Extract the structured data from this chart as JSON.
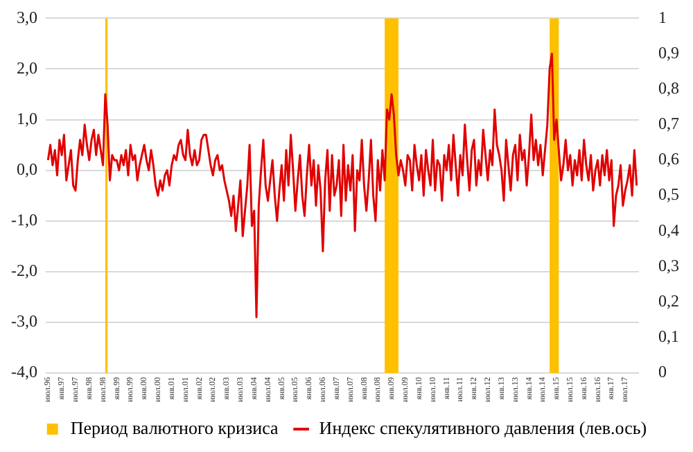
{
  "chart_data": {
    "type": "line",
    "x": [
      "1996-07",
      "1996-08",
      "1996-09",
      "1996-10",
      "1996-11",
      "1996-12",
      "1997-01",
      "1997-02",
      "1997-03",
      "1997-04",
      "1997-05",
      "1997-06",
      "1997-07",
      "1997-08",
      "1997-09",
      "1997-10",
      "1997-11",
      "1997-12",
      "1998-01",
      "1998-02",
      "1998-03",
      "1998-04",
      "1998-05",
      "1998-06",
      "1998-07",
      "1998-08",
      "1998-09",
      "1998-10",
      "1998-11",
      "1998-12",
      "1999-01",
      "1999-02",
      "1999-03",
      "1999-04",
      "1999-05",
      "1999-06",
      "1999-07",
      "1999-08",
      "1999-09",
      "1999-10",
      "1999-11",
      "1999-12",
      "2000-01",
      "2000-02",
      "2000-03",
      "2000-04",
      "2000-05",
      "2000-06",
      "2000-07",
      "2000-08",
      "2000-09",
      "2000-10",
      "2000-11",
      "2000-12",
      "2001-01",
      "2001-02",
      "2001-03",
      "2001-04",
      "2001-05",
      "2001-06",
      "2001-07",
      "2001-08",
      "2001-09",
      "2001-10",
      "2001-11",
      "2001-12",
      "2002-01",
      "2002-02",
      "2002-03",
      "2002-04",
      "2002-05",
      "2002-06",
      "2002-07",
      "2002-08",
      "2002-09",
      "2002-10",
      "2002-11",
      "2002-12",
      "2003-01",
      "2003-02",
      "2003-03",
      "2003-04",
      "2003-05",
      "2003-06",
      "2003-07",
      "2003-08",
      "2003-09",
      "2003-10",
      "2003-11",
      "2003-12",
      "2004-01",
      "2004-02",
      "2004-03",
      "2004-04",
      "2004-05",
      "2004-06",
      "2004-07",
      "2004-08",
      "2004-09",
      "2004-10",
      "2004-11",
      "2004-12",
      "2005-01",
      "2005-02",
      "2005-03",
      "2005-04",
      "2005-05",
      "2005-06",
      "2005-07",
      "2005-08",
      "2005-09",
      "2005-10",
      "2005-11",
      "2005-12",
      "2006-01",
      "2006-02",
      "2006-03",
      "2006-04",
      "2006-05",
      "2006-06",
      "2006-07",
      "2006-08",
      "2006-09",
      "2006-10",
      "2006-11",
      "2006-12",
      "2007-01",
      "2007-02",
      "2007-03",
      "2007-04",
      "2007-05",
      "2007-06",
      "2007-07",
      "2007-08",
      "2007-09",
      "2007-10",
      "2007-11",
      "2007-12",
      "2008-01",
      "2008-02",
      "2008-03",
      "2008-04",
      "2008-05",
      "2008-06",
      "2008-07",
      "2008-08",
      "2008-09",
      "2008-10",
      "2008-11",
      "2008-12",
      "2009-01",
      "2009-02",
      "2009-03",
      "2009-04",
      "2009-05",
      "2009-06",
      "2009-07",
      "2009-08",
      "2009-09",
      "2009-10",
      "2009-11",
      "2009-12",
      "2010-01",
      "2010-02",
      "2010-03",
      "2010-04",
      "2010-05",
      "2010-06",
      "2010-07",
      "2010-08",
      "2010-09",
      "2010-10",
      "2010-11",
      "2010-12",
      "2011-01",
      "2011-02",
      "2011-03",
      "2011-04",
      "2011-05",
      "2011-06",
      "2011-07",
      "2011-08",
      "2011-09",
      "2011-10",
      "2011-11",
      "2011-12",
      "2012-01",
      "2012-02",
      "2012-03",
      "2012-04",
      "2012-05",
      "2012-06",
      "2012-07",
      "2012-08",
      "2012-09",
      "2012-10",
      "2012-11",
      "2012-12",
      "2013-01",
      "2013-02",
      "2013-03",
      "2013-04",
      "2013-05",
      "2013-06",
      "2013-07",
      "2013-08",
      "2013-09",
      "2013-10",
      "2013-11",
      "2013-12",
      "2014-01",
      "2014-02",
      "2014-03",
      "2014-04",
      "2014-05",
      "2014-06",
      "2014-07",
      "2014-08",
      "2014-09",
      "2014-10",
      "2014-11",
      "2014-12",
      "2015-01",
      "2015-02",
      "2015-03",
      "2015-04",
      "2015-05",
      "2015-06",
      "2015-07",
      "2015-08",
      "2015-09",
      "2015-10",
      "2015-11",
      "2015-12",
      "2016-01",
      "2016-02",
      "2016-03",
      "2016-04",
      "2016-05",
      "2016-06",
      "2016-07",
      "2016-08",
      "2016-09",
      "2016-10",
      "2016-11",
      "2016-12",
      "2017-01",
      "2017-02",
      "2017-03",
      "2017-04",
      "2017-05",
      "2017-06",
      "2017-07",
      "2017-08",
      "2017-09",
      "2017-10",
      "2017-11",
      "2017-12"
    ],
    "series": [
      {
        "name": "Индекс спекулятивного давления (лев.ось)",
        "color": "#e00000",
        "values": [
          0.2,
          0.5,
          0.1,
          0.4,
          -0.1,
          0.6,
          0.3,
          0.7,
          -0.2,
          0.1,
          0.4,
          -0.3,
          -0.4,
          0.2,
          0.6,
          0.3,
          0.9,
          0.5,
          0.2,
          0.6,
          0.8,
          0.3,
          0.7,
          0.4,
          0.1,
          1.5,
          0.9,
          -0.2,
          0.3,
          0.2,
          0.2,
          0.0,
          0.3,
          0.1,
          0.4,
          -0.1,
          0.5,
          0.2,
          0.3,
          -0.2,
          0.1,
          0.3,
          0.5,
          0.2,
          0.0,
          0.4,
          0.1,
          -0.3,
          -0.5,
          -0.2,
          -0.4,
          -0.1,
          0.0,
          -0.3,
          0.1,
          0.3,
          0.2,
          0.5,
          0.6,
          0.3,
          0.2,
          0.8,
          0.3,
          0.1,
          0.4,
          0.1,
          0.2,
          0.6,
          0.7,
          0.7,
          0.4,
          0.1,
          -0.1,
          0.2,
          0.3,
          0.0,
          0.1,
          -0.2,
          -0.4,
          -0.6,
          -0.9,
          -0.5,
          -1.2,
          -0.7,
          -0.2,
          -1.3,
          -0.8,
          -0.3,
          0.5,
          -1.1,
          -0.8,
          -2.9,
          -0.7,
          0.0,
          0.6,
          -0.3,
          -0.6,
          -0.2,
          0.2,
          -0.5,
          -1.0,
          -0.4,
          0.1,
          -0.6,
          0.4,
          -0.3,
          0.7,
          0.0,
          -0.8,
          -0.2,
          0.3,
          -0.5,
          -0.9,
          -0.1,
          0.5,
          -0.3,
          0.2,
          -0.7,
          0.1,
          -0.4,
          -1.6,
          -0.2,
          0.4,
          -0.8,
          0.3,
          -0.5,
          -0.3,
          0.2,
          -0.9,
          0.5,
          -0.6,
          0.1,
          -0.4,
          0.3,
          -1.2,
          0.0,
          -0.2,
          0.6,
          -0.3,
          -0.8,
          -0.2,
          0.6,
          -0.5,
          -1.0,
          0.2,
          -0.4,
          0.4,
          -0.2,
          1.2,
          1.0,
          1.5,
          1.1,
          0.3,
          -0.1,
          0.2,
          0.0,
          -0.3,
          0.3,
          0.2,
          -0.4,
          0.5,
          0.1,
          -0.2,
          0.3,
          -0.5,
          0.4,
          0.0,
          -0.3,
          0.6,
          -0.4,
          0.2,
          0.1,
          -0.6,
          0.3,
          0.0,
          0.5,
          -0.2,
          0.7,
          0.1,
          -0.5,
          0.3,
          -0.1,
          0.9,
          0.2,
          -0.4,
          0.4,
          0.6,
          -0.3,
          0.2,
          -0.1,
          0.8,
          0.3,
          -0.2,
          0.4,
          0.1,
          1.2,
          0.5,
          0.3,
          0.0,
          -0.6,
          0.6,
          0.1,
          -0.4,
          0.3,
          0.5,
          -0.2,
          0.7,
          0.2,
          0.4,
          -0.3,
          0.3,
          1.1,
          0.2,
          0.6,
          0.1,
          0.5,
          -0.1,
          0.4,
          0.9,
          2.0,
          2.3,
          0.6,
          1.0,
          0.4,
          -0.2,
          0.1,
          0.6,
          0.0,
          0.3,
          -0.3,
          0.2,
          -0.1,
          0.4,
          -0.2,
          0.6,
          0.1,
          -0.2,
          0.3,
          -0.4,
          0.0,
          0.2,
          -0.3,
          0.3,
          -0.1,
          0.4,
          -0.2,
          0.2,
          -1.1,
          -0.5,
          -0.3,
          0.1,
          -0.7,
          -0.4,
          -0.2,
          0.1,
          -0.5,
          0.4,
          -0.3
        ]
      }
    ],
    "bands": [
      {
        "axis": "x",
        "from": "1998-08",
        "to": "1998-09",
        "label": "Период валютного кризиса",
        "color": "#ffc000"
      },
      {
        "axis": "x",
        "from": "2008-10",
        "to": "2009-04",
        "color": "#ffc000"
      },
      {
        "axis": "x",
        "from": "2014-10",
        "to": "2015-02",
        "color": "#ffc000"
      }
    ],
    "xlim": [
      "1996-06",
      "2018-01"
    ],
    "xticks": [
      {
        "value": "1996-07",
        "label": "июл.96"
      },
      {
        "value": "1997-01",
        "label": "янв.97"
      },
      {
        "value": "1997-07",
        "label": "июл.97"
      },
      {
        "value": "1998-01",
        "label": "янв.98"
      },
      {
        "value": "1998-07",
        "label": "июл.98"
      },
      {
        "value": "1999-01",
        "label": "янв.99"
      },
      {
        "value": "1999-07",
        "label": "июл.99"
      },
      {
        "value": "2000-01",
        "label": "янв.00"
      },
      {
        "value": "2000-07",
        "label": "июл.00"
      },
      {
        "value": "2001-01",
        "label": "янв.01"
      },
      {
        "value": "2001-07",
        "label": "июл.01"
      },
      {
        "value": "2002-01",
        "label": "янв.02"
      },
      {
        "value": "2002-07",
        "label": "июл.02"
      },
      {
        "value": "2003-01",
        "label": "янв.03"
      },
      {
        "value": "2003-07",
        "label": "июл.03"
      },
      {
        "value": "2004-01",
        "label": "янв.04"
      },
      {
        "value": "2004-07",
        "label": "июл.04"
      },
      {
        "value": "2005-01",
        "label": "янв.05"
      },
      {
        "value": "2005-07",
        "label": "июл.05"
      },
      {
        "value": "2006-01",
        "label": "янв.06"
      },
      {
        "value": "2006-07",
        "label": "июл.06"
      },
      {
        "value": "2007-01",
        "label": "янв.07"
      },
      {
        "value": "2007-07",
        "label": "июл.07"
      },
      {
        "value": "2008-01",
        "label": "янв.08"
      },
      {
        "value": "2008-07",
        "label": "июл.08"
      },
      {
        "value": "2009-01",
        "label": "янв.09"
      },
      {
        "value": "2009-07",
        "label": "июл.09"
      },
      {
        "value": "2010-01",
        "label": "янв.10"
      },
      {
        "value": "2010-07",
        "label": "июл.10"
      },
      {
        "value": "2011-01",
        "label": "янв.11"
      },
      {
        "value": "2011-07",
        "label": "июл.11"
      },
      {
        "value": "2012-01",
        "label": "янв.12"
      },
      {
        "value": "2012-07",
        "label": "июл.12"
      },
      {
        "value": "2013-01",
        "label": "янв.13"
      },
      {
        "value": "2013-07",
        "label": "июл.13"
      },
      {
        "value": "2014-01",
        "label": "янв.14"
      },
      {
        "value": "2014-07",
        "label": "июл.14"
      },
      {
        "value": "2015-01",
        "label": "янв.15"
      },
      {
        "value": "2015-07",
        "label": "июл.15"
      },
      {
        "value": "2016-01",
        "label": "янв.16"
      },
      {
        "value": "2016-07",
        "label": "июл.16"
      },
      {
        "value": "2017-01",
        "label": "янв.17"
      },
      {
        "value": "2017-07",
        "label": "июл.17"
      }
    ],
    "ylim": [
      -4,
      3
    ],
    "yticks": [
      {
        "value": -4,
        "label": "-4,0"
      },
      {
        "value": -3,
        "label": "-3,0"
      },
      {
        "value": -2,
        "label": "-2,0"
      },
      {
        "value": -1,
        "label": "-1,0"
      },
      {
        "value": 0,
        "label": "0,0"
      },
      {
        "value": 1,
        "label": "1,0"
      },
      {
        "value": 2,
        "label": "2,0"
      },
      {
        "value": 3,
        "label": "3,0"
      }
    ],
    "y2lim": [
      0,
      1
    ],
    "y2ticks": [
      0,
      {
        "value": 0.1,
        "label": "0,1"
      },
      {
        "value": 0.2,
        "label": "0,2"
      },
      {
        "value": 0.3,
        "label": "0,3"
      },
      {
        "value": 0.4,
        "label": "0,4"
      },
      {
        "value": 0.5,
        "label": "0,5"
      },
      {
        "value": 0.6,
        "label": "0,6"
      },
      {
        "value": 0.7,
        "label": "0,7"
      },
      {
        "value": 0.8,
        "label": "0,8"
      },
      {
        "value": 0.9,
        "label": "0,9"
      },
      1
    ],
    "grid": "y",
    "legend": "bottom",
    "marker": "none",
    "line_style": "solid"
  }
}
